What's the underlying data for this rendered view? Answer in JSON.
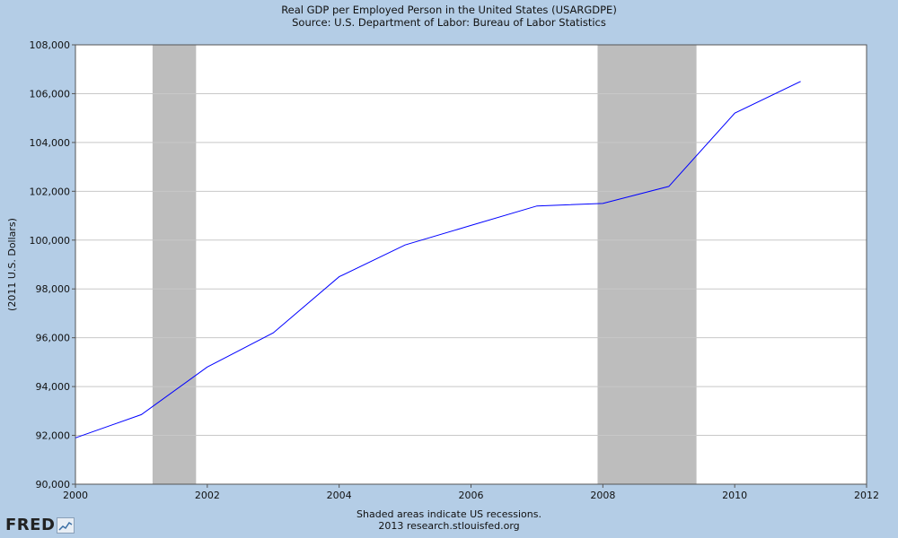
{
  "header": {
    "title": "Real GDP per Employed Person in the United States (USARGDPE)",
    "source": "Source: U.S. Department of Labor: Bureau of Labor Statistics"
  },
  "footer": {
    "note": "Shaded areas indicate US recessions.",
    "credit": "2013 research.stlouisfed.org"
  },
  "logo": {
    "text": "FRED",
    "icon": "chart-graph-icon"
  },
  "colors": {
    "background": "#b4cde6",
    "plot": "#ffffff",
    "line": "#0000ff",
    "recession": "#bdbdbd",
    "grid": "#c8c8c8"
  },
  "chart_data": {
    "type": "line",
    "title": "Real GDP per Employed Person in the United States (USARGDPE)",
    "subtitle": "Source: U.S. Department of Labor: Bureau of Labor Statistics",
    "xlabel": "",
    "ylabel": "(2011 U.S. Dollars)",
    "xlim": [
      2000,
      2012
    ],
    "ylim": [
      90000,
      108000
    ],
    "grid": true,
    "x_ticks": [
      2000,
      2002,
      2004,
      2006,
      2008,
      2010,
      2012
    ],
    "x_tick_labels": [
      "2000",
      "2002",
      "2004",
      "2006",
      "2008",
      "2010",
      "2012"
    ],
    "y_ticks": [
      90000,
      92000,
      94000,
      96000,
      98000,
      100000,
      102000,
      104000,
      106000,
      108000
    ],
    "y_tick_labels": [
      "90,000",
      "92,000",
      "94,000",
      "96,000",
      "98,000",
      "100,000",
      "102,000",
      "104,000",
      "106,000",
      "108,000"
    ],
    "series": [
      {
        "name": "USARGDPE",
        "x": [
          2000,
          2001,
          2002,
          2003,
          2004,
          2005,
          2006,
          2007,
          2008,
          2009,
          2010,
          2011
        ],
        "values": [
          91900,
          92850,
          94800,
          96200,
          98500,
          99800,
          100600,
          101400,
          101500,
          102200,
          105200,
          106500
        ]
      }
    ],
    "recessions": [
      {
        "start": 2001.17,
        "end": 2001.83
      },
      {
        "start": 2007.92,
        "end": 2009.42
      }
    ]
  }
}
